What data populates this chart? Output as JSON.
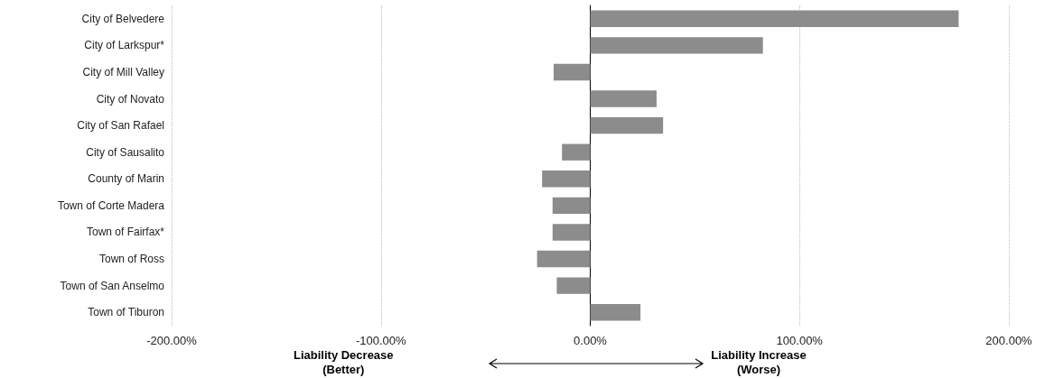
{
  "chart_data": {
    "type": "bar",
    "orientation": "horizontal",
    "categories": [
      "City of Belvedere",
      "City of Larkspur*",
      "City of Mill Valley",
      "City of Novato",
      "City of San Rafael",
      "City of Sausalito",
      "County of Marin",
      "Town of Corte Madera",
      "Town of Fairfax*",
      "Town of Ross",
      "Town of San Anselmo",
      "Town of Tiburon"
    ],
    "values": [
      176,
      82.5,
      -17.5,
      31.7,
      34.8,
      -13.5,
      -23,
      -18,
      -18,
      -25.4,
      -16,
      24
    ],
    "color": "#8c8c8c",
    "xlim": [
      -200,
      200
    ],
    "xticks": [
      {
        "value": -200,
        "label": "-200.00%"
      },
      {
        "value": -100,
        "label": "-100.00%"
      },
      {
        "value": 0,
        "label": "0.00%"
      },
      {
        "value": 100,
        "label": "100.00%"
      },
      {
        "value": 200,
        "label": "200.00%"
      }
    ],
    "grid": "x",
    "annotations": [
      "Liability Decrease\n(Better)",
      "Liability Increase\n(Worse)"
    ]
  }
}
